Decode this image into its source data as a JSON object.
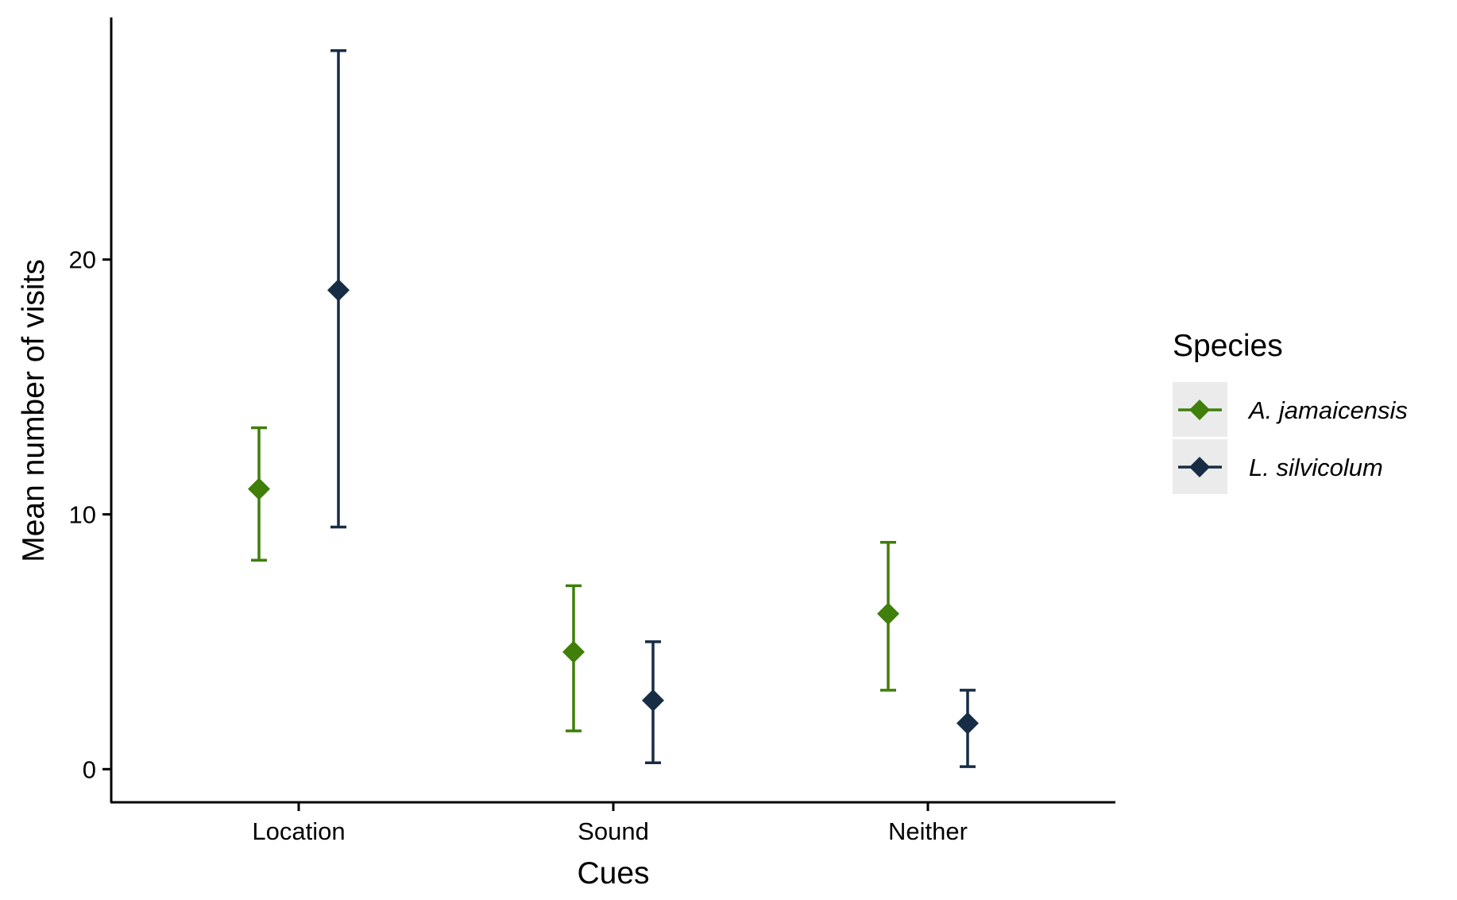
{
  "chart_data": {
    "type": "scatter",
    "xlabel": "Cues",
    "ylabel": "Mean number of visits",
    "categories": [
      "Location",
      "Sound",
      "Neither"
    ],
    "ylim": [
      -1.3,
      29.5
    ],
    "yticks": [
      0,
      10,
      20
    ],
    "grid": false,
    "legend": {
      "title": "Species",
      "position": "right"
    },
    "series": [
      {
        "name": "A. jamaicensis",
        "color": "#3f7f0a",
        "marker": "diamond",
        "points": [
          {
            "category": "Location",
            "mean": 11.0,
            "lower": 8.2,
            "upper": 13.4
          },
          {
            "category": "Sound",
            "mean": 4.6,
            "lower": 1.5,
            "upper": 7.2
          },
          {
            "category": "Neither",
            "mean": 6.1,
            "lower": 3.1,
            "upper": 8.9
          }
        ]
      },
      {
        "name": "L. silvicolum",
        "color": "#172d45",
        "marker": "diamond",
        "points": [
          {
            "category": "Location",
            "mean": 18.8,
            "lower": 9.5,
            "upper": 28.2
          },
          {
            "category": "Sound",
            "mean": 2.7,
            "lower": 0.25,
            "upper": 5.0
          },
          {
            "category": "Neither",
            "mean": 1.8,
            "lower": 0.1,
            "upper": 3.1
          }
        ]
      }
    ]
  }
}
